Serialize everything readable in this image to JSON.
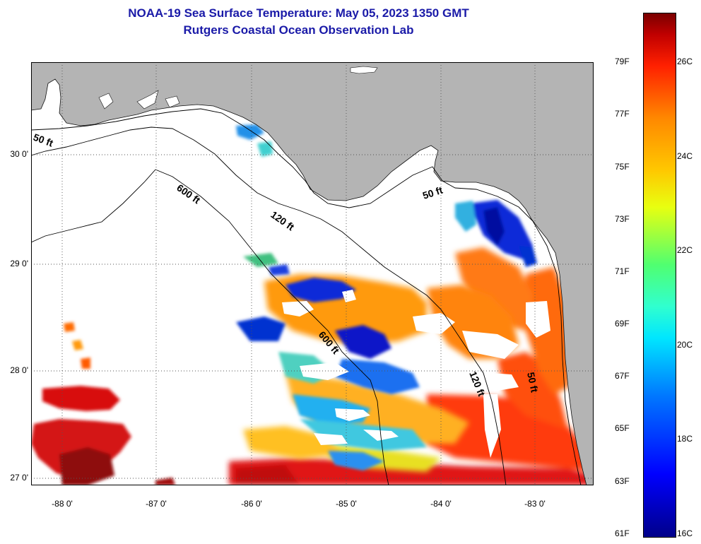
{
  "header": {
    "title": "NOAA-19 Sea Surface Temperature:  May 05, 2023 1350 GMT",
    "subtitle": "Rutgers Coastal Ocean Observation Lab"
  },
  "map": {
    "land_color": "#b4b4b4",
    "water_color": "#ffffff",
    "lat_labels": [
      "30 0'",
      "29 0'",
      "28 0'",
      "27 0'"
    ],
    "lon_labels": [
      "-88 0'",
      "-87 0'",
      "-86 0'",
      "-85 0'",
      "-84 0'",
      "-83 0'"
    ],
    "contour_labels": [
      "50 ft",
      "600 ft",
      "120 ft",
      "50 ft",
      "600 ft",
      "120 ft",
      "50 ft"
    ]
  },
  "colorbar": {
    "fahrenheit_labels": [
      "79F",
      "77F",
      "75F",
      "73F",
      "71F",
      "69F",
      "67F",
      "65F",
      "63F",
      "61F"
    ],
    "celsius_labels": [
      "26C",
      "24C",
      "22C",
      "20C",
      "18C",
      "16C"
    ],
    "min_color": "#00008a",
    "max_color": "#7a0000"
  }
}
